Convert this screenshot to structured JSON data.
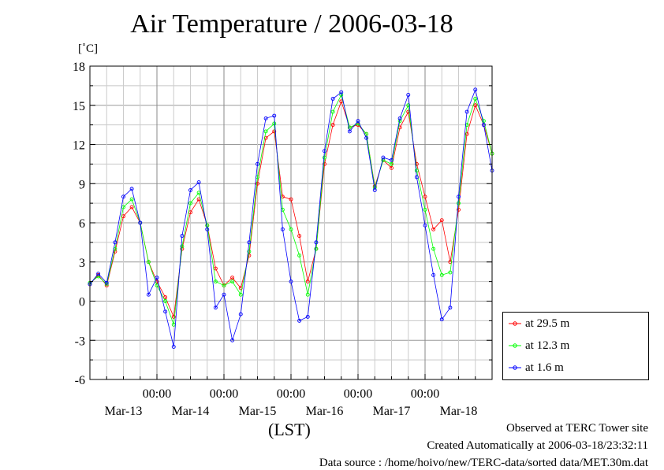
{
  "title": "Air Temperature / 2006-03-18",
  "unit_label": "[˚C]",
  "xlabel": "(LST)",
  "footer": {
    "line1": "Observed at TERC Tower site",
    "line2": "Created Automatically at 2006-03-18/23:32:11",
    "line3": "Data source : /home/hoivo/new/TERC-data/sorted  data/MET.30m.dat"
  },
  "legend": [
    {
      "label": "at 29.5 m",
      "color": "#ff0000"
    },
    {
      "label": "at 12.3 m",
      "color": "#00ff00"
    },
    {
      "label": "at 1.6 m",
      "color": "#0000ff"
    }
  ],
  "chart_data": {
    "type": "line",
    "title": "Air Temperature / 2006-03-18",
    "xlabel": "(LST)",
    "ylabel": "[˚C]",
    "ylim": [
      -6,
      18
    ],
    "xlim": [
      0,
      6
    ],
    "yticks": [
      "18",
      "15",
      "12",
      "9",
      "6",
      "3",
      "0",
      "-3",
      "-6"
    ],
    "xticks_time": [
      "00:00",
      "00:00",
      "00:00",
      "00:00",
      "00:00"
    ],
    "xticks_date": [
      "Mar-13",
      "Mar-14",
      "Mar-15",
      "Mar-16",
      "Mar-17",
      "Mar-18"
    ],
    "grid": true,
    "legend_position": "bottom-right outside plot",
    "series": [
      {
        "name": "at 29.5 m",
        "color": "#ff0000",
        "x": [
          0,
          0.125,
          0.25,
          0.375,
          0.5,
          0.625,
          0.75,
          0.875,
          1,
          1.125,
          1.25,
          1.375,
          1.5,
          1.625,
          1.75,
          1.875,
          2,
          2.125,
          2.25,
          2.375,
          2.5,
          2.625,
          2.75,
          2.875,
          3,
          3.125,
          3.25,
          3.375,
          3.5,
          3.625,
          3.75,
          3.875,
          4,
          4.125,
          4.25,
          4.375,
          4.5,
          4.625,
          4.75,
          4.875,
          5,
          5.125,
          5.25,
          5.375,
          5.5,
          5.625,
          5.75,
          5.875,
          6
        ],
        "values": [
          1.3,
          2.0,
          1.2,
          3.8,
          6.5,
          7.2,
          6.0,
          3.0,
          1.5,
          0.3,
          -1.2,
          4.0,
          6.8,
          7.8,
          5.8,
          2.5,
          1.2,
          1.8,
          1.0,
          3.5,
          9.0,
          12.5,
          13.0,
          8.0,
          7.8,
          5.0,
          1.5,
          4.0,
          10.5,
          13.5,
          15.3,
          13.3,
          13.5,
          12.8,
          8.8,
          10.8,
          10.2,
          13.3,
          14.5,
          10.5,
          8.0,
          5.5,
          6.2,
          3.0,
          7.0,
          12.8,
          15.0,
          13.5,
          11.3
        ]
      },
      {
        "name": "at 12.3 m",
        "color": "#00ff00",
        "x": [
          0,
          0.125,
          0.25,
          0.375,
          0.5,
          0.625,
          0.75,
          0.875,
          1,
          1.125,
          1.25,
          1.375,
          1.5,
          1.625,
          1.75,
          1.875,
          2,
          2.125,
          2.25,
          2.375,
          2.5,
          2.625,
          2.75,
          2.875,
          3,
          3.125,
          3.25,
          3.375,
          3.5,
          3.625,
          3.75,
          3.875,
          4,
          4.125,
          4.25,
          4.375,
          4.5,
          4.625,
          4.75,
          4.875,
          5,
          5.125,
          5.25,
          5.375,
          5.5,
          5.625,
          5.75,
          5.875,
          6
        ],
        "values": [
          1.4,
          1.9,
          1.3,
          4.0,
          7.2,
          7.8,
          6.0,
          3.0,
          1.2,
          0.0,
          -1.8,
          4.2,
          7.5,
          8.3,
          5.8,
          1.5,
          1.2,
          1.5,
          0.5,
          3.8,
          9.5,
          13.0,
          13.6,
          7.0,
          5.5,
          3.5,
          0.5,
          4.0,
          11.0,
          14.5,
          15.8,
          13.3,
          13.6,
          12.8,
          8.7,
          10.8,
          10.5,
          13.8,
          15.0,
          10.0,
          7.0,
          4.0,
          2.0,
          2.2,
          7.5,
          13.5,
          15.5,
          13.8,
          11.3
        ]
      },
      {
        "name": "at 1.6 m",
        "color": "#0000ff",
        "x": [
          0,
          0.125,
          0.25,
          0.375,
          0.5,
          0.625,
          0.75,
          0.875,
          1,
          1.125,
          1.25,
          1.375,
          1.5,
          1.625,
          1.75,
          1.875,
          2,
          2.125,
          2.25,
          2.375,
          2.5,
          2.625,
          2.75,
          2.875,
          3,
          3.125,
          3.25,
          3.375,
          3.5,
          3.625,
          3.75,
          3.875,
          4,
          4.125,
          4.25,
          4.375,
          4.5,
          4.625,
          4.75,
          4.875,
          5,
          5.125,
          5.25,
          5.375,
          5.5,
          5.625,
          5.75,
          5.875,
          6
        ],
        "values": [
          1.3,
          2.1,
          1.4,
          4.5,
          8.0,
          8.6,
          6.0,
          0.5,
          1.8,
          -0.8,
          -3.5,
          5.0,
          8.5,
          9.1,
          5.5,
          -0.5,
          0.5,
          -3.0,
          -1.0,
          4.5,
          10.5,
          14.0,
          14.2,
          5.5,
          1.5,
          -1.5,
          -1.2,
          4.5,
          11.5,
          15.5,
          16.0,
          13.0,
          13.8,
          12.5,
          8.5,
          11.0,
          10.8,
          14.0,
          15.8,
          9.5,
          5.8,
          2.0,
          -1.4,
          -0.5,
          8.0,
          14.5,
          16.2,
          13.5,
          10.0
        ]
      }
    ]
  }
}
